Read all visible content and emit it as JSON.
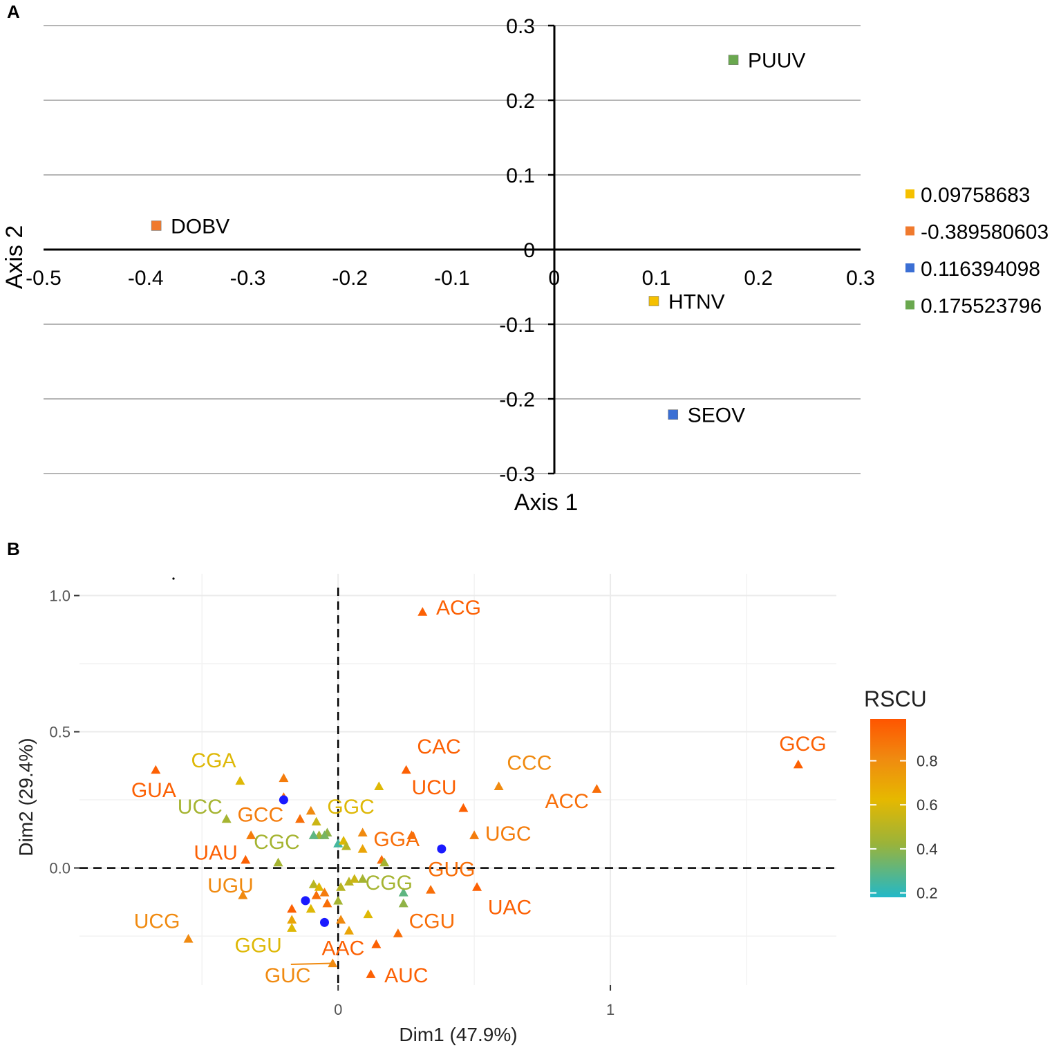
{
  "colors": {
    "DOBV": "#f07a2e",
    "PUUV": "#6aa84f",
    "HTNV": "#f5c000",
    "SEOV": "#3b6fd4",
    "rscu_low": "#22b8c8",
    "rscu_mid": "#e6b800",
    "rscu_high": "#ff5500",
    "blue_point": "#1a1aff"
  },
  "chart_data": [
    {
      "panel": "A",
      "type": "scatter",
      "xlabel": "Axis 1",
      "ylabel": "Axis 2",
      "xlim": [
        -0.5,
        0.3
      ],
      "ylim": [
        -0.3,
        0.3
      ],
      "xticks": [
        -0.5,
        -0.4,
        -0.3,
        -0.2,
        -0.1,
        0,
        0.1,
        0.2,
        0.3
      ],
      "xtick_labels": [
        "-0.5",
        "-0.4",
        "-0.3",
        "-0.2",
        "-0.1",
        "0",
        "0.1",
        "0.2",
        "0.3"
      ],
      "yticks": [
        -0.3,
        -0.2,
        -0.1,
        0,
        0.1,
        0.2,
        0.3
      ],
      "ytick_labels": [
        "-0.3",
        "-0.2",
        "-0.1",
        "0",
        "0.1",
        "0.2",
        "0.3"
      ],
      "grid": "horizontal",
      "points": [
        {
          "label": "DOBV",
          "x": -0.3896,
          "y": 0.032,
          "color_key": "DOBV"
        },
        {
          "label": "PUUV",
          "x": 0.1755,
          "y": 0.254,
          "color_key": "PUUV"
        },
        {
          "label": "HTNV",
          "x": 0.0976,
          "y": -0.069,
          "color_key": "HTNV"
        },
        {
          "label": "SEOV",
          "x": 0.1164,
          "y": -0.221,
          "color_key": "SEOV"
        }
      ],
      "legend": {
        "placement": "right",
        "entries": [
          {
            "label": "0.09758683",
            "color_key": "HTNV"
          },
          {
            "label": "-0.389580603",
            "color_key": "DOBV"
          },
          {
            "label": "0.116394098",
            "color_key": "SEOV"
          },
          {
            "label": "0.175523796",
            "color_key": "PUUV"
          }
        ]
      }
    },
    {
      "panel": "B",
      "type": "scatter",
      "xlabel": "Dim1 (47.9%)",
      "ylabel": "Dim2 (29.4%)",
      "xlim": [
        -0.95,
        1.83
      ],
      "ylim": [
        -0.43,
        1.08
      ],
      "xticks": [
        0,
        1
      ],
      "xtick_labels": [
        "0",
        "1"
      ],
      "yticks": [
        0.0,
        0.5,
        1.0
      ],
      "ytick_labels": [
        "0.0",
        "0.5",
        "1.0"
      ],
      "grid": true,
      "reference_lines": {
        "x": 0,
        "y": 0
      },
      "labeled_codons": [
        {
          "codon": "ACG",
          "x": 0.31,
          "y": 0.94,
          "rscu": 0.95,
          "lx": 0.36,
          "ly": 0.93
        },
        {
          "codon": "GCG",
          "x": 1.69,
          "y": 0.38,
          "rscu": 0.95,
          "lx": 1.62,
          "ly": 0.43
        },
        {
          "codon": "CAC",
          "x": 0.25,
          "y": 0.36,
          "rscu": 0.95,
          "lx": 0.29,
          "ly": 0.42
        },
        {
          "codon": "CCC",
          "x": 0.59,
          "y": 0.3,
          "rscu": 0.8,
          "lx": 0.62,
          "ly": 0.36
        },
        {
          "codon": "ACC",
          "x": 0.95,
          "y": 0.29,
          "rscu": 0.9,
          "lx": 0.76,
          "ly": 0.22
        },
        {
          "codon": "UCU",
          "x": 0.46,
          "y": 0.22,
          "rscu": 0.95,
          "lx": 0.27,
          "ly": 0.27
        },
        {
          "codon": "UGC",
          "x": 0.5,
          "y": 0.12,
          "rscu": 0.85,
          "lx": 0.54,
          "ly": 0.1
        },
        {
          "codon": "GGA",
          "x": 0.27,
          "y": 0.12,
          "rscu": 0.9,
          "lx": 0.13,
          "ly": 0.08
        },
        {
          "codon": "GUG",
          "x": 0.34,
          "y": -0.08,
          "rscu": 0.9,
          "lx": 0.33,
          "ly": -0.03
        },
        {
          "codon": "UAC",
          "x": 0.51,
          "y": -0.07,
          "rscu": 0.95,
          "lx": 0.55,
          "ly": -0.17
        },
        {
          "codon": "CGU",
          "x": 0.22,
          "y": -0.24,
          "rscu": 0.9,
          "lx": 0.26,
          "ly": -0.22
        },
        {
          "codon": "AUC",
          "x": 0.12,
          "y": -0.39,
          "rscu": 0.95,
          "lx": 0.17,
          "ly": -0.42
        },
        {
          "codon": "AAC",
          "x": 0.14,
          "y": -0.28,
          "rscu": 0.95,
          "lx": -0.06,
          "ly": -0.32
        },
        {
          "codon": "GUC",
          "x": -0.02,
          "y": -0.35,
          "rscu": 0.8,
          "lx": -0.27,
          "ly": -0.42
        },
        {
          "codon": "GGU",
          "x": -0.17,
          "y": -0.22,
          "rscu": 0.6,
          "lx": -0.38,
          "ly": -0.31
        },
        {
          "codon": "UCG",
          "x": -0.55,
          "y": -0.26,
          "rscu": 0.8,
          "lx": -0.75,
          "ly": -0.22
        },
        {
          "codon": "UGU",
          "x": -0.35,
          "y": -0.1,
          "rscu": 0.8,
          "lx": -0.48,
          "ly": -0.09
        },
        {
          "codon": "UAU",
          "x": -0.34,
          "y": 0.03,
          "rscu": 0.95,
          "lx": -0.53,
          "ly": 0.03
        },
        {
          "codon": "CGC",
          "x": -0.22,
          "y": 0.02,
          "rscu": 0.45,
          "lx": -0.31,
          "ly": 0.07
        },
        {
          "codon": "GCC",
          "x": -0.32,
          "y": 0.12,
          "rscu": 0.85,
          "lx": -0.37,
          "ly": 0.17
        },
        {
          "codon": "UCC",
          "x": -0.41,
          "y": 0.18,
          "rscu": 0.45,
          "lx": -0.59,
          "ly": 0.2
        },
        {
          "codon": "GUA",
          "x": -0.67,
          "y": 0.36,
          "rscu": 0.95,
          "lx": -0.76,
          "ly": 0.26
        },
        {
          "codon": "CGA",
          "x": -0.36,
          "y": 0.32,
          "rscu": 0.6,
          "lx": -0.54,
          "ly": 0.37
        },
        {
          "codon": "GGC",
          "x": 0.15,
          "y": 0.3,
          "rscu": 0.6,
          "lx": -0.04,
          "ly": 0.2
        },
        {
          "codon": "CGG",
          "x": 0.09,
          "y": -0.04,
          "rscu": 0.45,
          "lx": 0.1,
          "ly": -0.08
        }
      ],
      "unlabeled_points_rscu": [
        0.85,
        0.9,
        0.8,
        0.55,
        0.45,
        0.4,
        0.35,
        0.3,
        0.25,
        0.9,
        0.6,
        0.5,
        0.8,
        0.7,
        0.9,
        0.45,
        0.5,
        0.55,
        0.3,
        0.4,
        0.5,
        0.6,
        0.9,
        0.85,
        0.95,
        0.7,
        0.6,
        0.9,
        0.5,
        0.45,
        0.8,
        0.7,
        0.6
      ],
      "unlabeled_points": [
        [
          -0.2,
          0.33
        ],
        [
          -0.2,
          0.26
        ],
        [
          -0.1,
          0.21
        ],
        [
          -0.08,
          0.17
        ],
        [
          -0.07,
          0.12
        ],
        [
          -0.04,
          0.13
        ],
        [
          -0.05,
          0.12
        ],
        [
          -0.09,
          0.12
        ],
        [
          0.0,
          0.09
        ],
        [
          -0.14,
          0.18
        ],
        [
          0.02,
          0.1
        ],
        [
          0.03,
          0.08
        ],
        [
          0.09,
          0.13
        ],
        [
          0.09,
          0.07
        ],
        [
          0.16,
          0.03
        ],
        [
          0.17,
          0.02
        ],
        [
          0.04,
          -0.05
        ],
        [
          0.06,
          -0.04
        ],
        [
          0.24,
          -0.09
        ],
        [
          0.24,
          -0.13
        ],
        [
          -0.09,
          -0.06
        ],
        [
          -0.07,
          -0.07
        ],
        [
          -0.08,
          -0.1
        ],
        [
          -0.05,
          -0.09
        ],
        [
          -0.17,
          -0.15
        ],
        [
          -0.17,
          -0.19
        ],
        [
          -0.1,
          -0.15
        ],
        [
          -0.04,
          -0.13
        ],
        [
          0.01,
          -0.07
        ],
        [
          0.0,
          -0.12
        ],
        [
          0.01,
          -0.19
        ],
        [
          0.04,
          -0.23
        ],
        [
          0.11,
          -0.17
        ]
      ],
      "blue_points": [
        [
          -0.2,
          0.25
        ],
        [
          0.38,
          0.07
        ],
        [
          -0.12,
          -0.12
        ],
        [
          -0.05,
          -0.2
        ]
      ],
      "legend": {
        "title": "RSCU",
        "placement": "right",
        "range": [
          0.18,
          0.99
        ],
        "ticks": [
          0.2,
          0.4,
          0.6,
          0.8
        ],
        "tick_labels": [
          "0.2",
          "0.4",
          "0.6",
          "0.8"
        ]
      }
    }
  ]
}
